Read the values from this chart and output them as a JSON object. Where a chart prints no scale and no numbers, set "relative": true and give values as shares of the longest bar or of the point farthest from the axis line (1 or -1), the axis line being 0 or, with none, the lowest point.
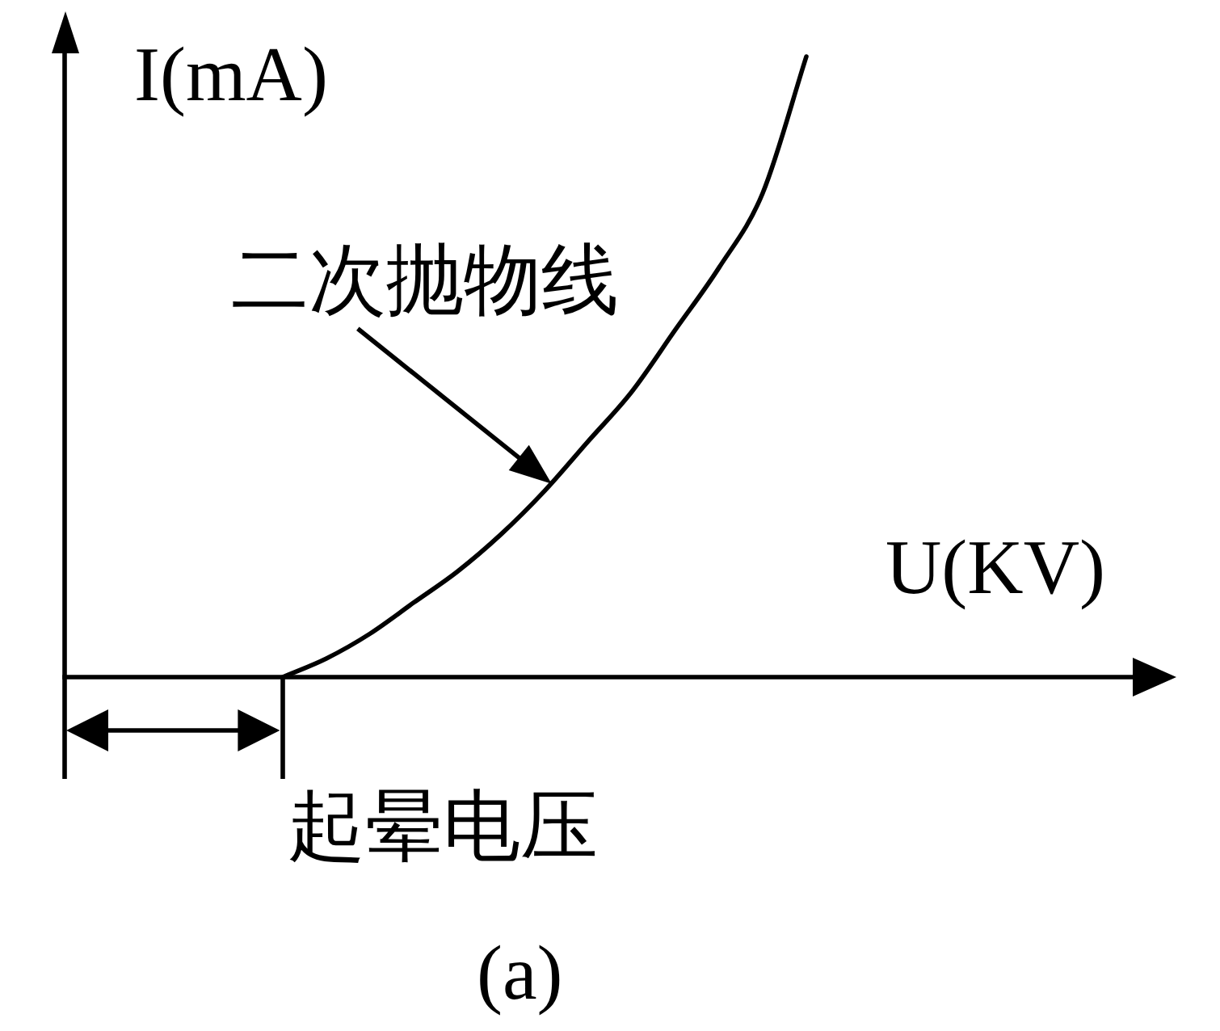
{
  "chart_data": {
    "type": "line",
    "relative": true,
    "xlabel": "U(KV)",
    "ylabel": "I(mA)",
    "annotations": [
      "二次抛物线",
      "起晕电压",
      "(a)"
    ],
    "categories": [
      null,
      null,
      null,
      null,
      null,
      null,
      null,
      null,
      null,
      null,
      null,
      null,
      null,
      null,
      null,
      null,
      null,
      null
    ],
    "values": [
      null,
      null,
      null,
      null,
      null,
      0,
      0.03,
      0.07,
      0.12,
      0.17,
      0.23,
      0.3,
      0.38,
      0.46,
      0.56,
      0.66,
      0.78,
      1
    ],
    "color": "#000000",
    "marker": "none",
    "line_style": "solid"
  }
}
